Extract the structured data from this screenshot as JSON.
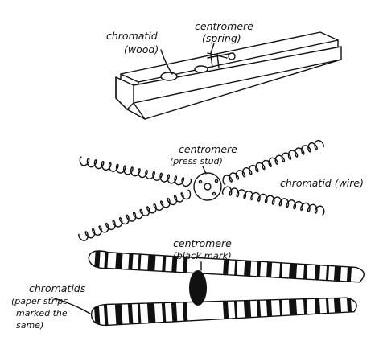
{
  "models": [
    {
      "name": "clothes-peg",
      "labels": {
        "chromatid": "chromatid",
        "chromatid_material": "(wood)",
        "centromere": "centromere",
        "centromere_material": "(spring)"
      }
    },
    {
      "name": "wire-model",
      "labels": {
        "centromere": "centromere",
        "centromere_material": "(press stud)",
        "chromatid": "chromatid (wire)"
      }
    },
    {
      "name": "paper-strips",
      "labels": {
        "centromere": "centromere",
        "centromere_material": "(black mark)",
        "chromatids_line1": "chromatids",
        "chromatids_line2": "(paper strips",
        "chromatids_line3": "marked the",
        "chromatids_line4": "same)"
      }
    }
  ]
}
